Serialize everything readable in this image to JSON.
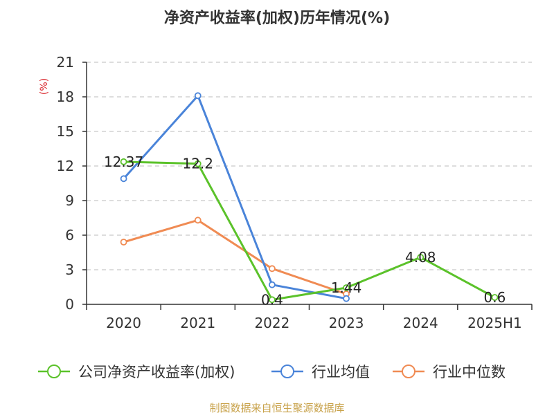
{
  "chart_data": {
    "type": "line",
    "title": "净资产收益率(加权)历年情况(%)",
    "ylabel": "(%)",
    "xlabel": "",
    "categories": [
      "2020",
      "2021",
      "2022",
      "2023",
      "2024",
      "2025H1"
    ],
    "ylim": [
      0,
      21
    ],
    "yticks": [
      0,
      3,
      6,
      9,
      12,
      15,
      18,
      21
    ],
    "grid": true,
    "legend_position": "bottom",
    "series": [
      {
        "name": "公司净资产收益率(加权)",
        "color": "#5bc22a",
        "values": [
          12.37,
          12.2,
          0.4,
          1.44,
          4.08,
          0.6
        ],
        "labels": [
          "12.37",
          "12.2",
          "0.4",
          "1.44",
          "4.08",
          "0.6"
        ]
      },
      {
        "name": "行业均值",
        "color": "#4a84d9",
        "values": [
          10.9,
          18.1,
          1.7,
          0.5,
          null,
          null
        ]
      },
      {
        "name": "行业中位数",
        "color": "#f08b53",
        "values": [
          5.4,
          7.3,
          3.1,
          0.9,
          null,
          null
        ]
      }
    ]
  },
  "source": "制图数据来自恒生聚源数据库"
}
